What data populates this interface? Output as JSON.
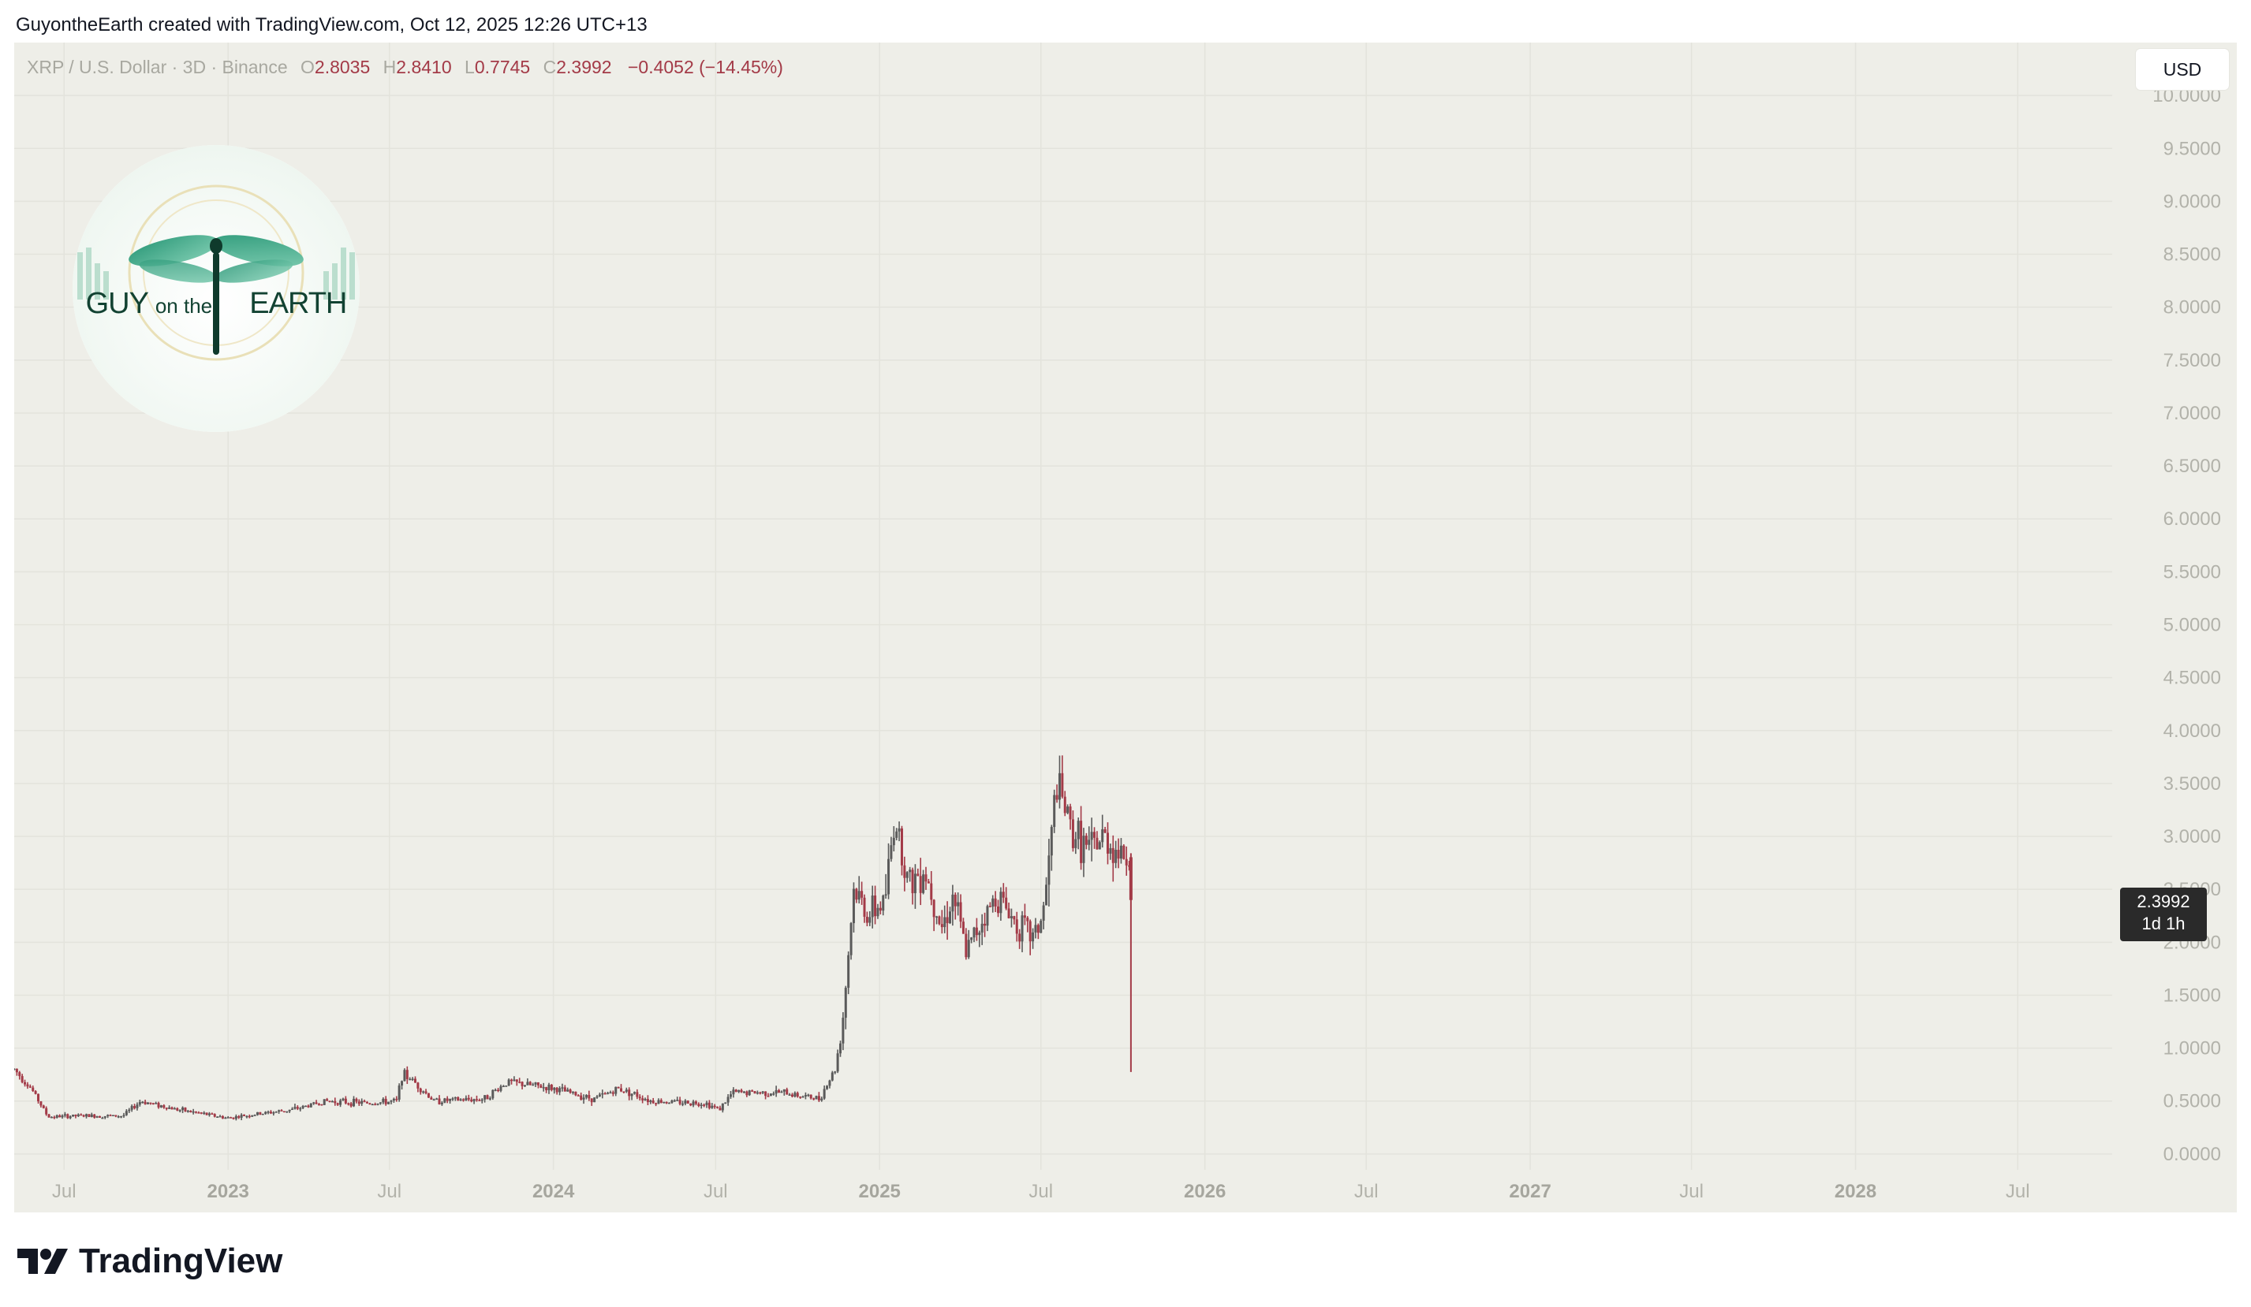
{
  "caption": "GuyontheEarth created with TradingView.com, Oct 12, 2025 12:26 UTC+13",
  "legend": {
    "symbol": "XRP / U.S. Dollar · 3D · Binance",
    "open_label": "O",
    "open": "2.8035",
    "high_label": "H",
    "high": "2.8410",
    "low_label": "L",
    "low": "0.7745",
    "close_label": "C",
    "close": "2.3992",
    "change": "−0.4052 (−14.45%)"
  },
  "currency": "USD",
  "logo": {
    "word1": "GUY",
    "word2": "on the",
    "word3": "EARTH"
  },
  "price_tag": {
    "price": "2.3992",
    "countdown": "1d 1h"
  },
  "brand": "TradingView",
  "colors": {
    "down": "#a33a47",
    "up": "#5a5a5a",
    "background": "#eeeee8",
    "grid": "#e3e3dc"
  },
  "chart_data": {
    "type": "candlestick",
    "title": "XRP / U.S. Dollar · 3D · Binance",
    "ylim": [
      -0.15,
      10.5
    ],
    "y_ticks": [
      "0.0000",
      "0.5000",
      "1.0000",
      "1.5000",
      "2.0000",
      "2.5000",
      "3.0000",
      "3.5000",
      "4.0000",
      "4.5000",
      "5.0000",
      "5.5000",
      "6.0000",
      "6.5000",
      "7.0000",
      "7.5000",
      "8.0000",
      "8.5000",
      "9.0000",
      "9.5000",
      "10.0000"
    ],
    "x_range": [
      "2022-05-06",
      "2028-10-15"
    ],
    "x_ticks": [
      {
        "date": "2022-07-01",
        "label": "Jul",
        "bold": false
      },
      {
        "date": "2023-01-01",
        "label": "2023",
        "bold": true
      },
      {
        "date": "2023-07-01",
        "label": "Jul",
        "bold": false
      },
      {
        "date": "2024-01-01",
        "label": "2024",
        "bold": true
      },
      {
        "date": "2024-07-01",
        "label": "Jul",
        "bold": false
      },
      {
        "date": "2025-01-01",
        "label": "2025",
        "bold": true
      },
      {
        "date": "2025-07-01",
        "label": "Jul",
        "bold": false
      },
      {
        "date": "2026-01-01",
        "label": "2026",
        "bold": true
      },
      {
        "date": "2026-07-01",
        "label": "Jul",
        "bold": false
      },
      {
        "date": "2027-01-01",
        "label": "2027",
        "bold": true
      },
      {
        "date": "2027-07-01",
        "label": "Jul",
        "bold": false
      },
      {
        "date": "2028-01-01",
        "label": "2028",
        "bold": true
      },
      {
        "date": "2028-07-01",
        "label": "Jul",
        "bold": false
      }
    ],
    "series_anchors": [
      [
        "2022-05-06",
        0.8
      ],
      [
        "2022-05-25",
        0.62
      ],
      [
        "2022-06-13",
        0.35
      ],
      [
        "2022-07-15",
        0.36
      ],
      [
        "2022-09-05",
        0.36
      ],
      [
        "2022-09-25",
        0.5
      ],
      [
        "2022-11-05",
        0.42
      ],
      [
        "2022-12-31",
        0.34
      ],
      [
        "2023-03-15",
        0.42
      ],
      [
        "2023-04-20",
        0.5
      ],
      [
        "2023-06-10",
        0.48
      ],
      [
        "2023-07-10",
        0.5
      ],
      [
        "2023-07-14",
        0.75
      ],
      [
        "2023-07-24",
        0.72
      ],
      [
        "2023-08-20",
        0.5
      ],
      [
        "2023-10-15",
        0.52
      ],
      [
        "2023-11-10",
        0.68
      ],
      [
        "2023-12-31",
        0.62
      ],
      [
        "2024-02-15",
        0.52
      ],
      [
        "2024-03-15",
        0.62
      ],
      [
        "2024-04-20",
        0.5
      ],
      [
        "2024-06-20",
        0.48
      ],
      [
        "2024-07-05",
        0.42
      ],
      [
        "2024-07-20",
        0.58
      ],
      [
        "2024-09-15",
        0.58
      ],
      [
        "2024-10-25",
        0.52
      ],
      [
        "2024-11-12",
        0.8
      ],
      [
        "2024-11-20",
        1.2
      ],
      [
        "2024-12-03",
        2.5
      ],
      [
        "2024-12-20",
        2.25
      ],
      [
        "2025-01-07",
        2.4
      ],
      [
        "2025-01-18",
        3.2
      ],
      [
        "2025-02-03",
        2.55
      ],
      [
        "2025-02-20",
        2.7
      ],
      [
        "2025-03-12",
        2.15
      ],
      [
        "2025-03-25",
        2.45
      ],
      [
        "2025-04-08",
        1.9
      ],
      [
        "2025-04-25",
        2.2
      ],
      [
        "2025-05-14",
        2.45
      ],
      [
        "2025-06-01",
        2.2
      ],
      [
        "2025-06-22",
        2.05
      ],
      [
        "2025-07-03",
        2.25
      ],
      [
        "2025-07-12",
        2.9
      ],
      [
        "2025-07-18",
        3.5
      ],
      [
        "2025-08-05",
        3.05
      ],
      [
        "2025-08-25",
        2.85
      ],
      [
        "2025-09-10",
        3.0
      ],
      [
        "2025-09-25",
        2.85
      ],
      [
        "2025-10-09",
        2.8
      ]
    ],
    "last_candle": {
      "date": "2025-10-10",
      "open": 2.8035,
      "high": 2.841,
      "low": 0.7745,
      "close": 2.3992
    }
  }
}
